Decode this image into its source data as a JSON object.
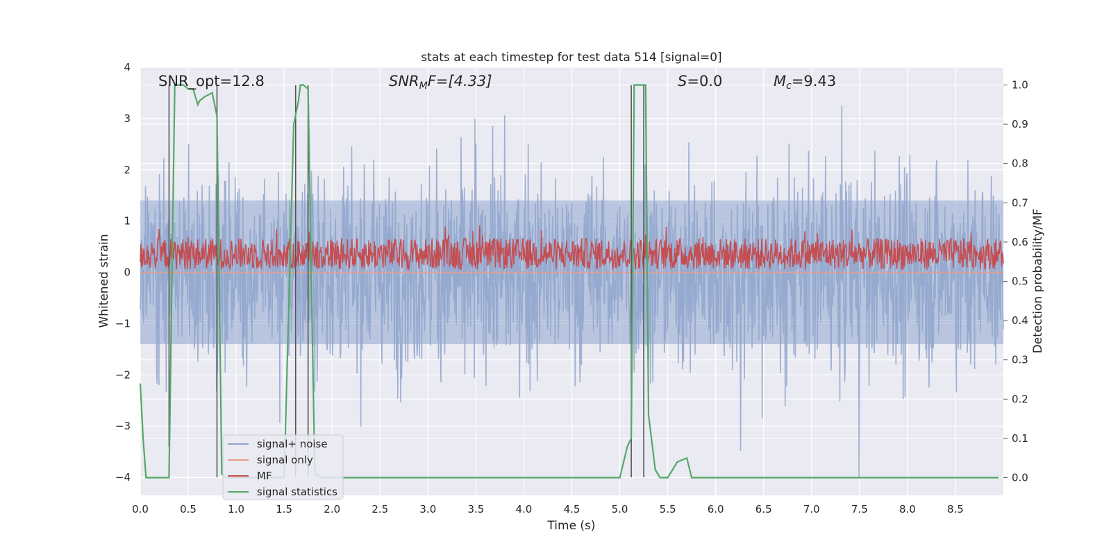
{
  "chart_data": {
    "type": "line",
    "title": "stats at each timestep for test data 514 [signal=0]",
    "xlabel": "Time (s)",
    "ylabel": "Whitened strain",
    "ylabel_right": "Detection probability/MF",
    "xlim": [
      0.0,
      9.0
    ],
    "ylim": [
      -4.35,
      4.0
    ],
    "ylim_right": [
      -0.045,
      1.045
    ],
    "xticks": [
      0.0,
      0.5,
      1.0,
      1.5,
      2.0,
      2.5,
      3.0,
      3.5,
      4.0,
      4.5,
      5.0,
      5.5,
      6.0,
      6.5,
      7.0,
      7.5,
      8.0,
      8.5
    ],
    "xtick_labels": [
      "0.0",
      "0.5",
      "1.0",
      "1.5",
      "2.0",
      "2.5",
      "3.0",
      "3.5",
      "4.0",
      "4.5",
      "5.0",
      "5.5",
      "6.0",
      "6.5",
      "7.0",
      "7.5",
      "8.0",
      "8.5"
    ],
    "yticks": [
      4,
      3,
      2,
      1,
      0,
      -1,
      -2,
      -3,
      -4
    ],
    "ytick_labels": [
      "4",
      "3",
      "2",
      "1",
      "0",
      "−1",
      "−2",
      "−3",
      "−4"
    ],
    "yticks_right": [
      1.0,
      0.9,
      0.8,
      0.7,
      0.6,
      0.5,
      0.4,
      0.3,
      0.2,
      0.1,
      0.0
    ],
    "ytick_labels_right": [
      "1.0",
      "0.9",
      "0.8",
      "0.7",
      "0.6",
      "0.5",
      "0.4",
      "0.3",
      "0.2",
      "0.1",
      "0.0"
    ],
    "annotations": {
      "snr_opt": "SNR_opt=12.8",
      "snr_mf_main": "SNR",
      "snr_mf_sub": "M",
      "snr_mf_rest": "F=[4.33]",
      "s_italic": "S",
      "s_rest": "=0.0",
      "mc_main": "M",
      "mc_sub": "c",
      "mc_rest": "=9.43"
    },
    "colors": {
      "plot_bg": "#eaeaf2",
      "grid": "#ffffff",
      "signal_noise": "#8fa5cd",
      "signal_only": "#e89e85",
      "mf": "#c44e52",
      "signal_statistics": "#55a868",
      "marker_line": "#555555"
    },
    "series": [
      {
        "name": "signal+ noise",
        "kind": "noise",
        "color": "#8fa5cd",
        "x_range": [
          0.0,
          9.0
        ],
        "mean": 0.0,
        "band": [
          -1.4,
          1.4
        ],
        "typical_extremes": [
          -3.0,
          3.5
        ],
        "min": -4.0,
        "max": 3.7,
        "note": "dense whitened strain trace"
      },
      {
        "name": "signal only",
        "kind": "flat",
        "color": "#e89e85",
        "x_range": [
          0.0,
          9.0
        ],
        "value": 0.0
      },
      {
        "name": "MF",
        "kind": "noise_right",
        "color": "#c44e52",
        "x_range": [
          0.0,
          9.0
        ],
        "range_right": [
          0.52,
          0.63
        ],
        "band_right": [
          0.53,
          0.61
        ],
        "peak_right": 0.645,
        "note": "matched-filter output on right axis"
      },
      {
        "name": "signal statistics",
        "kind": "line_right",
        "color": "#55a868",
        "x": [
          0.0,
          0.03,
          0.06,
          0.3,
          0.36,
          0.4,
          0.45,
          0.5,
          0.55,
          0.6,
          0.62,
          0.67,
          0.75,
          0.8,
          0.85,
          0.9,
          1.2,
          1.5,
          1.6,
          1.65,
          1.67,
          1.7,
          1.75,
          1.78,
          1.82,
          1.9,
          2.0,
          2.2,
          2.3,
          2.5,
          3.5,
          3.8,
          4.0,
          4.5,
          5.0,
          5.08,
          5.12,
          5.15,
          5.2,
          5.27,
          5.3,
          5.37,
          5.42,
          5.5,
          5.6,
          5.7,
          5.75,
          5.8,
          6.0,
          6.1,
          6.2,
          6.5,
          6.6,
          7.0,
          8.0,
          8.95
        ],
        "y": [
          0.24,
          0.1,
          0.0,
          0.0,
          1.0,
          1.0,
          1.0,
          0.99,
          0.99,
          0.95,
          0.96,
          0.97,
          0.98,
          0.92,
          0.01,
          0.0,
          0.0,
          0.0,
          0.9,
          0.96,
          1.0,
          1.0,
          0.99,
          0.56,
          0.01,
          0.0,
          0.0,
          0.0,
          0.0,
          0.0,
          0.0,
          0.0,
          0.0,
          0.0,
          0.0,
          0.08,
          0.1,
          1.0,
          1.0,
          1.0,
          0.16,
          0.02,
          0.0,
          0.0,
          0.04,
          0.05,
          0.0,
          0.0,
          0.0,
          0.0,
          0.0,
          0.0,
          0.0,
          0.0,
          0.0,
          0.0
        ]
      }
    ],
    "markers": [
      {
        "x": 0.3,
        "y_top": 3.65,
        "y_bottom": -3.4
      },
      {
        "x": 0.8,
        "y_top": 3.65,
        "y_bottom": -4.0
      },
      {
        "x": 1.62,
        "y_top": 3.65,
        "y_bottom": -4.0
      },
      {
        "x": 1.75,
        "y_top": 3.65,
        "y_bottom": -4.0
      },
      {
        "x": 5.12,
        "y_top": 3.65,
        "y_bottom": -4.0
      },
      {
        "x": 5.25,
        "y_top": 3.65,
        "y_bottom": -4.0
      }
    ],
    "legend": {
      "placement": "lower-left",
      "entries": [
        "signal+ noise",
        "signal only",
        "MF",
        "signal statistics"
      ]
    }
  }
}
